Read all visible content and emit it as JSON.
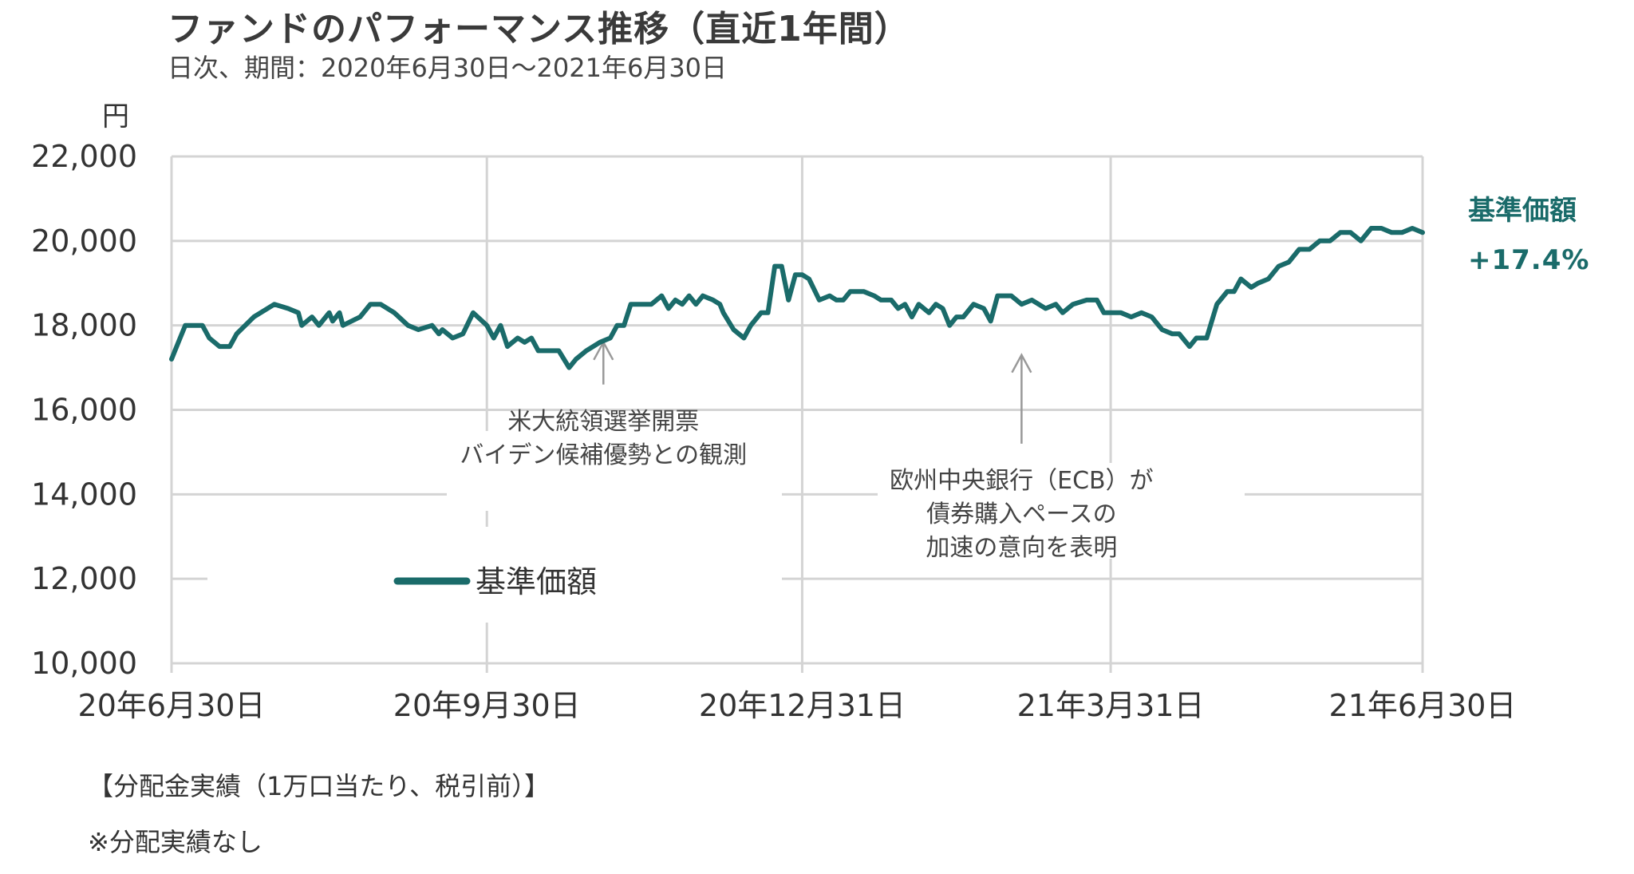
{
  "title": "ファンドのパフォーマンス推移（直近1年間）",
  "subtitle": "日次、期間：2020年6月30日～2021年6月30日",
  "y_unit": "円",
  "summary": {
    "label": "基準価額",
    "change": "+17.4%"
  },
  "notes": [
    "【分配金実績（1万口当たり、税引前）】",
    "※分配実績なし"
  ],
  "colors": {
    "series": "#1a6b6a",
    "grid": "#d4d4d4",
    "arrow": "#999999"
  },
  "chart_data": {
    "type": "line",
    "title": "",
    "xlabel": "",
    "ylabel": "円",
    "ylim": [
      10000,
      22000
    ],
    "yticks": [
      10000,
      12000,
      14000,
      16000,
      18000,
      20000,
      22000
    ],
    "ytick_labels": [
      "10,000",
      "12,000",
      "14,000",
      "16,000",
      "18,000",
      "20,000",
      "22,000"
    ],
    "xticks": [
      "20年6月30日",
      "20年9月30日",
      "20年12月31日",
      "21年3月31日",
      "21年6月30日"
    ],
    "xtick_dates": [
      "2020-06-30",
      "2020-09-30",
      "2020-12-31",
      "2021-03-31",
      "2021-06-30"
    ],
    "grid": true,
    "legend": {
      "position": "center-bottom"
    },
    "series": [
      {
        "name": "基準価額",
        "color": "#1a6b6a",
        "points": [
          [
            "2020-06-30",
            17200
          ],
          [
            "2020-07-02",
            17600
          ],
          [
            "2020-07-04",
            18000
          ],
          [
            "2020-07-09",
            18000
          ],
          [
            "2020-07-11",
            17700
          ],
          [
            "2020-07-14",
            17500
          ],
          [
            "2020-07-17",
            17500
          ],
          [
            "2020-07-19",
            17800
          ],
          [
            "2020-07-24",
            18200
          ],
          [
            "2020-07-30",
            18500
          ],
          [
            "2020-08-03",
            18400
          ],
          [
            "2020-08-06",
            18300
          ],
          [
            "2020-08-07",
            18000
          ],
          [
            "2020-08-10",
            18200
          ],
          [
            "2020-08-12",
            18000
          ],
          [
            "2020-08-15",
            18300
          ],
          [
            "2020-08-16",
            18100
          ],
          [
            "2020-08-18",
            18300
          ],
          [
            "2020-08-19",
            18000
          ],
          [
            "2020-08-24",
            18200
          ],
          [
            "2020-08-27",
            18500
          ],
          [
            "2020-08-30",
            18500
          ],
          [
            "2020-09-03",
            18300
          ],
          [
            "2020-09-07",
            18000
          ],
          [
            "2020-09-10",
            17900
          ],
          [
            "2020-09-14",
            18000
          ],
          [
            "2020-09-16",
            17800
          ],
          [
            "2020-09-17",
            17900
          ],
          [
            "2020-09-20",
            17700
          ],
          [
            "2020-09-23",
            17800
          ],
          [
            "2020-09-26",
            18300
          ],
          [
            "2020-09-30",
            18000
          ],
          [
            "2020-10-02",
            17700
          ],
          [
            "2020-10-04",
            18000
          ],
          [
            "2020-10-06",
            17500
          ],
          [
            "2020-10-09",
            17700
          ],
          [
            "2020-10-11",
            17600
          ],
          [
            "2020-10-13",
            17700
          ],
          [
            "2020-10-15",
            17400
          ],
          [
            "2020-10-18",
            17400
          ],
          [
            "2020-10-21",
            17400
          ],
          [
            "2020-10-24",
            17000
          ],
          [
            "2020-10-26",
            17200
          ],
          [
            "2020-10-29",
            17400
          ],
          [
            "2020-11-02",
            17600
          ],
          [
            "2020-11-05",
            17700
          ],
          [
            "2020-11-07",
            18000
          ],
          [
            "2020-11-09",
            18000
          ],
          [
            "2020-11-11",
            18500
          ],
          [
            "2020-11-14",
            18500
          ],
          [
            "2020-11-17",
            18500
          ],
          [
            "2020-11-20",
            18700
          ],
          [
            "2020-11-22",
            18400
          ],
          [
            "2020-11-24",
            18600
          ],
          [
            "2020-11-26",
            18500
          ],
          [
            "2020-11-28",
            18700
          ],
          [
            "2020-11-30",
            18500
          ],
          [
            "2020-12-02",
            18700
          ],
          [
            "2020-12-05",
            18600
          ],
          [
            "2020-12-07",
            18500
          ],
          [
            "2020-12-08",
            18300
          ],
          [
            "2020-12-11",
            17900
          ],
          [
            "2020-12-14",
            17700
          ],
          [
            "2020-12-16",
            18000
          ],
          [
            "2020-12-19",
            18300
          ],
          [
            "2020-12-21",
            18300
          ],
          [
            "2020-12-23",
            19400
          ],
          [
            "2020-12-25",
            19400
          ],
          [
            "2020-12-27",
            18600
          ],
          [
            "2020-12-29",
            19200
          ],
          [
            "2020-12-31",
            19200
          ],
          [
            "2021-01-02",
            19100
          ],
          [
            "2021-01-05",
            18600
          ],
          [
            "2021-01-08",
            18700
          ],
          [
            "2021-01-10",
            18600
          ],
          [
            "2021-01-12",
            18600
          ],
          [
            "2021-01-14",
            18800
          ],
          [
            "2021-01-18",
            18800
          ],
          [
            "2021-01-21",
            18700
          ],
          [
            "2021-01-23",
            18600
          ],
          [
            "2021-01-26",
            18600
          ],
          [
            "2021-01-28",
            18400
          ],
          [
            "2021-01-30",
            18500
          ],
          [
            "2021-02-01",
            18200
          ],
          [
            "2021-02-03",
            18500
          ],
          [
            "2021-02-06",
            18300
          ],
          [
            "2021-02-08",
            18500
          ],
          [
            "2021-02-10",
            18400
          ],
          [
            "2021-02-12",
            18000
          ],
          [
            "2021-02-14",
            18200
          ],
          [
            "2021-02-16",
            18200
          ],
          [
            "2021-02-19",
            18500
          ],
          [
            "2021-02-22",
            18400
          ],
          [
            "2021-02-24",
            18100
          ],
          [
            "2021-02-26",
            18700
          ],
          [
            "2021-03-02",
            18700
          ],
          [
            "2021-03-05",
            18500
          ],
          [
            "2021-03-08",
            18600
          ],
          [
            "2021-03-10",
            18500
          ],
          [
            "2021-03-12",
            18400
          ],
          [
            "2021-03-15",
            18500
          ],
          [
            "2021-03-17",
            18300
          ],
          [
            "2021-03-20",
            18500
          ],
          [
            "2021-03-24",
            18600
          ],
          [
            "2021-03-27",
            18600
          ],
          [
            "2021-03-29",
            18300
          ],
          [
            "2021-03-31",
            18300
          ],
          [
            "2021-04-03",
            18300
          ],
          [
            "2021-04-06",
            18200
          ],
          [
            "2021-04-09",
            18300
          ],
          [
            "2021-04-12",
            18200
          ],
          [
            "2021-04-15",
            17900
          ],
          [
            "2021-04-18",
            17800
          ],
          [
            "2021-04-20",
            17800
          ],
          [
            "2021-04-23",
            17500
          ],
          [
            "2021-04-25",
            17700
          ],
          [
            "2021-04-28",
            17700
          ],
          [
            "2021-05-01",
            18500
          ],
          [
            "2021-05-04",
            18800
          ],
          [
            "2021-05-06",
            18800
          ],
          [
            "2021-05-08",
            19100
          ],
          [
            "2021-05-11",
            18900
          ],
          [
            "2021-05-13",
            19000
          ],
          [
            "2021-05-16",
            19100
          ],
          [
            "2021-05-19",
            19400
          ],
          [
            "2021-05-22",
            19500
          ],
          [
            "2021-05-25",
            19800
          ],
          [
            "2021-05-28",
            19800
          ],
          [
            "2021-05-31",
            20000
          ],
          [
            "2021-06-03",
            20000
          ],
          [
            "2021-06-06",
            20200
          ],
          [
            "2021-06-09",
            20200
          ],
          [
            "2021-06-12",
            20000
          ],
          [
            "2021-06-15",
            20300
          ],
          [
            "2021-06-18",
            20300
          ],
          [
            "2021-06-21",
            20200
          ],
          [
            "2021-06-24",
            20200
          ],
          [
            "2021-06-27",
            20300
          ],
          [
            "2021-06-30",
            20200
          ]
        ]
      }
    ],
    "annotations": [
      {
        "date": "2020-11-03",
        "arrow_from": 16600,
        "arrow_to": 17600,
        "lines": [
          "米大統領選挙開票",
          "バイデン候補優勢との観測"
        ]
      },
      {
        "date": "2021-03-05",
        "arrow_from": 15200,
        "arrow_to": 17300,
        "lines": [
          "欧州中央銀行（ECB）が",
          "債券購入ペースの",
          "加速の意向を表明"
        ]
      }
    ]
  }
}
